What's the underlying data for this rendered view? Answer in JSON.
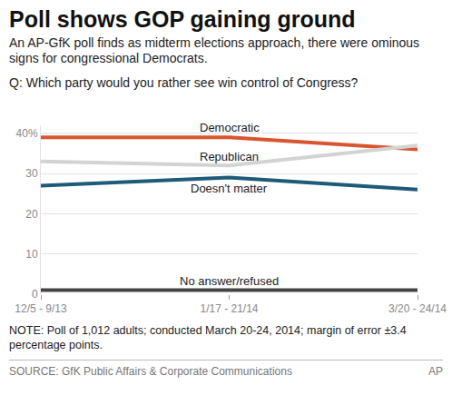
{
  "chart_data": {
    "type": "line",
    "title": "Poll shows GOP gaining ground",
    "subtitle": "An AP-GfK poll finds as midterm elections approach, there were ominous signs for congressional Democrats.",
    "question": "Q: Which party would you rather see win control of Congress?",
    "note": "NOTE: Poll of 1,012  adults; conducted March 20-24, 2014; margin of error ±3.4 percentage points.",
    "source": "SOURCE: GfK Public Affairs & Corporate Communications",
    "credit": "AP",
    "categories": [
      "12/5 - 9/13",
      "1/17 - 21/14",
      "3/20 - 24/14"
    ],
    "series": [
      {
        "name": "Democratic",
        "color": "#d8552f",
        "values": [
          39,
          39,
          36
        ]
      },
      {
        "name": "Republican",
        "color": "#d3d3d3",
        "values": [
          33,
          32,
          37
        ]
      },
      {
        "name": "Doesn't matter",
        "color": "#1d5b78",
        "values": [
          27,
          29,
          26
        ]
      },
      {
        "name": "No answer/refused",
        "color": "#444444",
        "values": [
          1,
          1,
          1
        ]
      }
    ],
    "ylim": [
      0,
      42
    ],
    "yticks": [
      0,
      10,
      20,
      30,
      {
        "value": 40,
        "label": "40%"
      }
    ],
    "grid": true
  }
}
